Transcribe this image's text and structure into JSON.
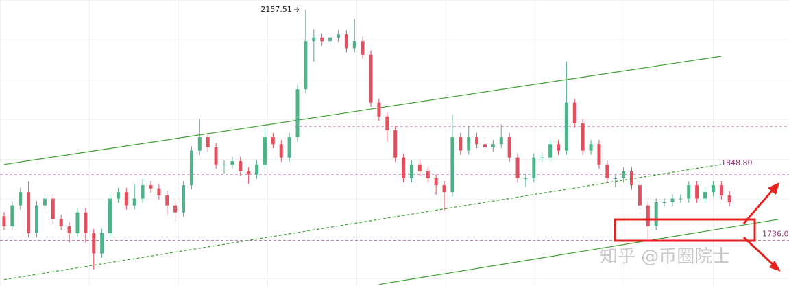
{
  "chart_data": {
    "type": "candlestick",
    "up_color": "#4fb38a",
    "down_color": "#e0505e",
    "xlim": [
      -0.5,
      96.3
    ],
    "ylim": [
      1639,
      2175.5
    ],
    "open": [
      1770,
      1751,
      1790,
      1815,
      1738,
      1790,
      1803,
      1764,
      1751,
      1738,
      1777,
      1738,
      1700,
      1738,
      1803,
      1815,
      1790,
      1803,
      1828,
      1822,
      1809,
      1790,
      1777,
      1828,
      1893,
      1918,
      1899,
      1867,
      1867,
      1873,
      1854,
      1848,
      1867,
      1918,
      1905,
      1880,
      1918,
      2008,
      2098,
      2105,
      2098,
      2105,
      2111,
      2085,
      2098,
      2073,
      1983,
      1957,
      1931,
      1880,
      1841,
      1867,
      1854,
      1841,
      1828,
      1815,
      1918,
      1893,
      1918,
      1905,
      1899,
      1905,
      1918,
      1880,
      1841,
      1841,
      1880,
      1880,
      1905,
      1893,
      1983,
      1944,
      1893,
      1905,
      1867,
      1841,
      1841,
      1854,
      1828,
      1790,
      1751,
      1796,
      1796,
      1803,
      1803,
      1828,
      1803,
      1815,
      1828,
      1809
    ],
    "high": [
      1778,
      1798,
      1823,
      1835,
      1798,
      1811,
      1811,
      1772,
      1759,
      1785,
      1785,
      1746,
      1746,
      1811,
      1823,
      1823,
      1830,
      1840,
      1836,
      1830,
      1817,
      1798,
      1836,
      1901,
      1952,
      1926,
      1907,
      1875,
      1881,
      1881,
      1862,
      1875,
      1935,
      1926,
      1913,
      1926,
      2016,
      2157.51,
      2120,
      2113,
      2113,
      2119,
      2119,
      2140,
      2106,
      2081,
      1991,
      1965,
      1939,
      1888,
      1875,
      1875,
      1862,
      1849,
      1836,
      1960,
      1926,
      1940,
      1926,
      1913,
      1913,
      1942,
      1926,
      1888,
      1849,
      1888,
      1888,
      1913,
      1913,
      2060,
      1991,
      1952,
      1913,
      1913,
      1875,
      1849,
      1862,
      1862,
      1836,
      1798,
      1804,
      1804,
      1811,
      1811,
      1836,
      1836,
      1823,
      1836,
      1836,
      1817
    ],
    "low": [
      1743,
      1743,
      1782,
      1730,
      1730,
      1782,
      1756,
      1743,
      1720,
      1730,
      1720,
      1670,
      1692,
      1730,
      1795,
      1782,
      1782,
      1795,
      1814,
      1801,
      1770,
      1760,
      1769,
      1820,
      1885,
      1891,
      1859,
      1850,
      1859,
      1846,
      1830,
      1840,
      1859,
      1897,
      1872,
      1872,
      1910,
      2000,
      2060,
      2090,
      2090,
      2097,
      2077,
      2077,
      2065,
      1975,
      1949,
      1910,
      1872,
      1833,
      1833,
      1846,
      1833,
      1810,
      1780,
      1807,
      1885,
      1885,
      1897,
      1891,
      1891,
      1897,
      1872,
      1833,
      1825,
      1833,
      1872,
      1872,
      1885,
      1885,
      1936,
      1885,
      1885,
      1859,
      1833,
      1825,
      1833,
      1820,
      1782,
      1728,
      1743,
      1788,
      1788,
      1795,
      1795,
      1795,
      1795,
      1807,
      1801,
      1788
    ],
    "close": [
      1751,
      1790,
      1815,
      1738,
      1790,
      1803,
      1764,
      1751,
      1738,
      1777,
      1738,
      1700,
      1738,
      1803,
      1815,
      1790,
      1803,
      1828,
      1822,
      1809,
      1790,
      1777,
      1828,
      1893,
      1918,
      1899,
      1867,
      1867,
      1873,
      1854,
      1848,
      1867,
      1918,
      1905,
      1880,
      1918,
      2008,
      2098,
      2105,
      2098,
      2105,
      2111,
      2085,
      2098,
      2073,
      1983,
      1957,
      1931,
      1880,
      1841,
      1867,
      1854,
      1841,
      1828,
      1815,
      1918,
      1893,
      1918,
      1905,
      1899,
      1905,
      1918,
      1880,
      1841,
      1841,
      1880,
      1880,
      1905,
      1893,
      1983,
      1944,
      1893,
      1905,
      1867,
      1841,
      1841,
      1854,
      1828,
      1790,
      1751,
      1796,
      1796,
      1803,
      1803,
      1828,
      1803,
      1815,
      1828,
      1809,
      1796
    ],
    "levels": [
      1939,
      {
        "value": 1848.8,
        "label": "1848.80"
      },
      1724
    ],
    "level_color": "#8a3a7a",
    "target_label": {
      "value": 1736,
      "label": "1736.0"
    },
    "trendlines": [
      {
        "points": [
          [
            0,
            1867
          ],
          [
            88,
            2070
          ]
        ],
        "dashed": false
      },
      {
        "points": [
          [
            46,
            1642
          ],
          [
            95,
            1764
          ]
        ],
        "dashed": false
      },
      {
        "points": [
          [
            0,
            1651
          ],
          [
            88,
            1867
          ]
        ],
        "dashed": true
      }
    ],
    "trend_color": "#3aa030",
    "watermark": "知乎 @币圈院士"
  }
}
